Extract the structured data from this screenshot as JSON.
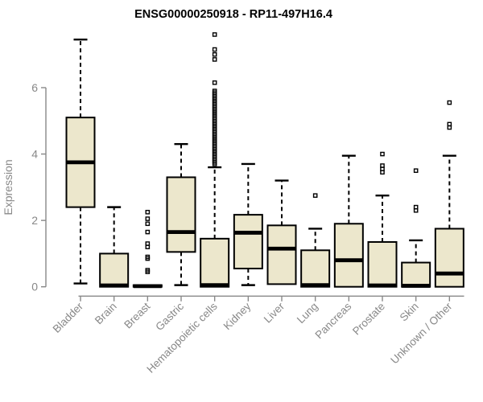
{
  "chart_data": {
    "type": "boxplot",
    "title": "ENSG00000250918 - RP11-497H16.4",
    "ylabel": "Expression",
    "yticks": [
      0,
      2,
      4,
      6
    ],
    "ylim": [
      0,
      7.7
    ],
    "grid": false,
    "legend": "none",
    "colors": {
      "axis": "#888888",
      "box_fill": "#ece7cc",
      "box_stroke": "#000000",
      "median": "#000000",
      "title": "#000000"
    },
    "categories": [
      "Bladder",
      "Brain",
      "Breast",
      "Gastric",
      "Hematopoietic cells",
      "Kidney",
      "Liver",
      "Lung",
      "Pancreas",
      "Prostate",
      "Skin",
      "Unknown / Other"
    ],
    "boxes": [
      {
        "category": "Bladder",
        "min": 0.1,
        "q1": 2.4,
        "median": 3.75,
        "q3": 5.1,
        "max": 7.45,
        "outliers": []
      },
      {
        "category": "Brain",
        "min": 0,
        "q1": 0,
        "median": 0.04,
        "q3": 1.0,
        "max": 2.4,
        "outliers": []
      },
      {
        "category": "Breast",
        "min": 0,
        "q1": 0,
        "median": 0.02,
        "q3": 0.05,
        "max": 0.05,
        "outliers": [
          0.45,
          0.5,
          0.85,
          0.9,
          1.2,
          1.3,
          1.65,
          1.9,
          2.05,
          2.25
        ]
      },
      {
        "category": "Gastric",
        "min": 0.05,
        "q1": 1.05,
        "median": 1.65,
        "q3": 3.3,
        "max": 4.3,
        "outliers": []
      },
      {
        "category": "Hematopoietic cells",
        "min": 0,
        "q1": 0,
        "median": 0.05,
        "q3": 1.45,
        "max": 3.6,
        "outliers": [
          3.7,
          3.75,
          3.8,
          3.85,
          3.9,
          3.95,
          4.0,
          4.05,
          4.1,
          4.15,
          4.2,
          4.25,
          4.3,
          4.35,
          4.4,
          4.45,
          4.5,
          4.55,
          4.6,
          4.65,
          4.7,
          4.75,
          4.8,
          4.85,
          4.9,
          4.95,
          5.0,
          5.05,
          5.1,
          5.15,
          5.2,
          5.25,
          5.3,
          5.35,
          5.4,
          5.45,
          5.5,
          5.55,
          5.6,
          5.65,
          5.7,
          5.75,
          5.8,
          5.85,
          5.9,
          6.15,
          6.85,
          7.0,
          7.15,
          7.6
        ]
      },
      {
        "category": "Kidney",
        "min": 0.05,
        "q1": 0.55,
        "median": 1.63,
        "q3": 2.17,
        "max": 3.7,
        "outliers": []
      },
      {
        "category": "Liver",
        "min": 0.08,
        "q1": 0.08,
        "median": 1.15,
        "q3": 1.85,
        "max": 3.2,
        "outliers": []
      },
      {
        "category": "Lung",
        "min": 0,
        "q1": 0,
        "median": 0.05,
        "q3": 1.1,
        "max": 1.75,
        "outliers": [
          2.75
        ]
      },
      {
        "category": "Pancreas",
        "min": 0,
        "q1": 0,
        "median": 0.8,
        "q3": 1.9,
        "max": 3.95,
        "outliers": []
      },
      {
        "category": "Prostate",
        "min": 0,
        "q1": 0,
        "median": 0.04,
        "q3": 1.35,
        "max": 2.75,
        "outliers": [
          3.45,
          3.55,
          3.65,
          4.0
        ]
      },
      {
        "category": "Skin",
        "min": 0,
        "q1": 0,
        "median": 0.03,
        "q3": 0.73,
        "max": 1.4,
        "outliers": [
          2.3,
          2.4,
          3.5
        ]
      },
      {
        "category": "Unknown / Other",
        "min": 0,
        "q1": 0,
        "median": 0.4,
        "q3": 1.75,
        "max": 3.95,
        "outliers": [
          4.8,
          4.9,
          5.55
        ]
      }
    ]
  }
}
